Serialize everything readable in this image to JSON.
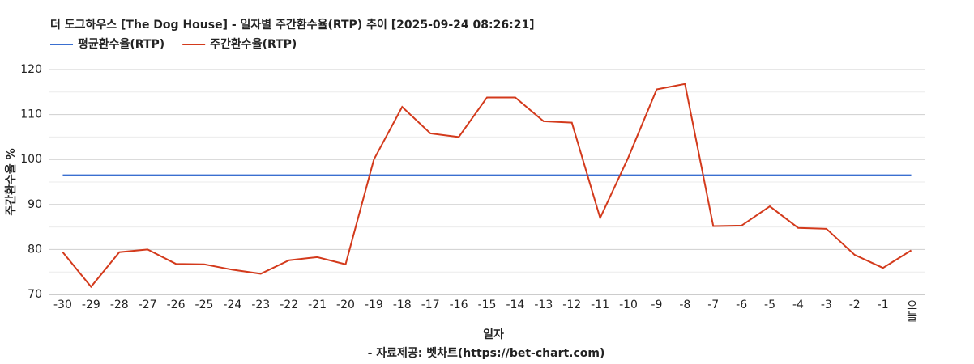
{
  "chart_data": {
    "type": "line",
    "title": "더 도그하우스 [The Dog House] - 일자별 주간환수율(RTP) 추이 [2025-09-24 08:26:21]",
    "x_label": "일자",
    "y_label": "주간환수율 %",
    "source": "- 자료제공: 벳차트(https://bet-chart.com)",
    "categories": [
      "-30",
      "-29",
      "-28",
      "-27",
      "-26",
      "-25",
      "-24",
      "-23",
      "-22",
      "-21",
      "-20",
      "-19",
      "-18",
      "-17",
      "-16",
      "-15",
      "-14",
      "-13",
      "-12",
      "-11",
      "-10",
      "-9",
      "-8",
      "-7",
      "-6",
      "-5",
      "-4",
      "-3",
      "-2",
      "-1",
      "오늘"
    ],
    "series": [
      {
        "name": "평균환수율(RTP)",
        "color": "#3a6fd0",
        "values": [
          96.5,
          96.5,
          96.5,
          96.5,
          96.5,
          96.5,
          96.5,
          96.5,
          96.5,
          96.5,
          96.5,
          96.5,
          96.5,
          96.5,
          96.5,
          96.5,
          96.5,
          96.5,
          96.5,
          96.5,
          96.5,
          96.5,
          96.5,
          96.5,
          96.5,
          96.5,
          96.5,
          96.5,
          96.5,
          96.5,
          96.5
        ]
      },
      {
        "name": "주간환수율(RTP)",
        "color": "#d33a1c",
        "values": [
          79.4,
          71.7,
          79.4,
          80.0,
          76.8,
          76.7,
          75.5,
          74.6,
          77.6,
          78.3,
          76.7,
          100.0,
          111.7,
          105.8,
          105.0,
          113.8,
          113.8,
          108.5,
          108.2,
          87.0,
          100.5,
          115.6,
          116.8,
          85.2,
          85.3,
          89.6,
          84.8,
          84.6,
          78.8,
          75.9,
          79.8
        ]
      }
    ],
    "ylim": [
      70,
      120
    ],
    "yticks": [
      70,
      80,
      90,
      100,
      110,
      120
    ],
    "grid": true,
    "minor_grid": true,
    "legend": "top-left"
  }
}
